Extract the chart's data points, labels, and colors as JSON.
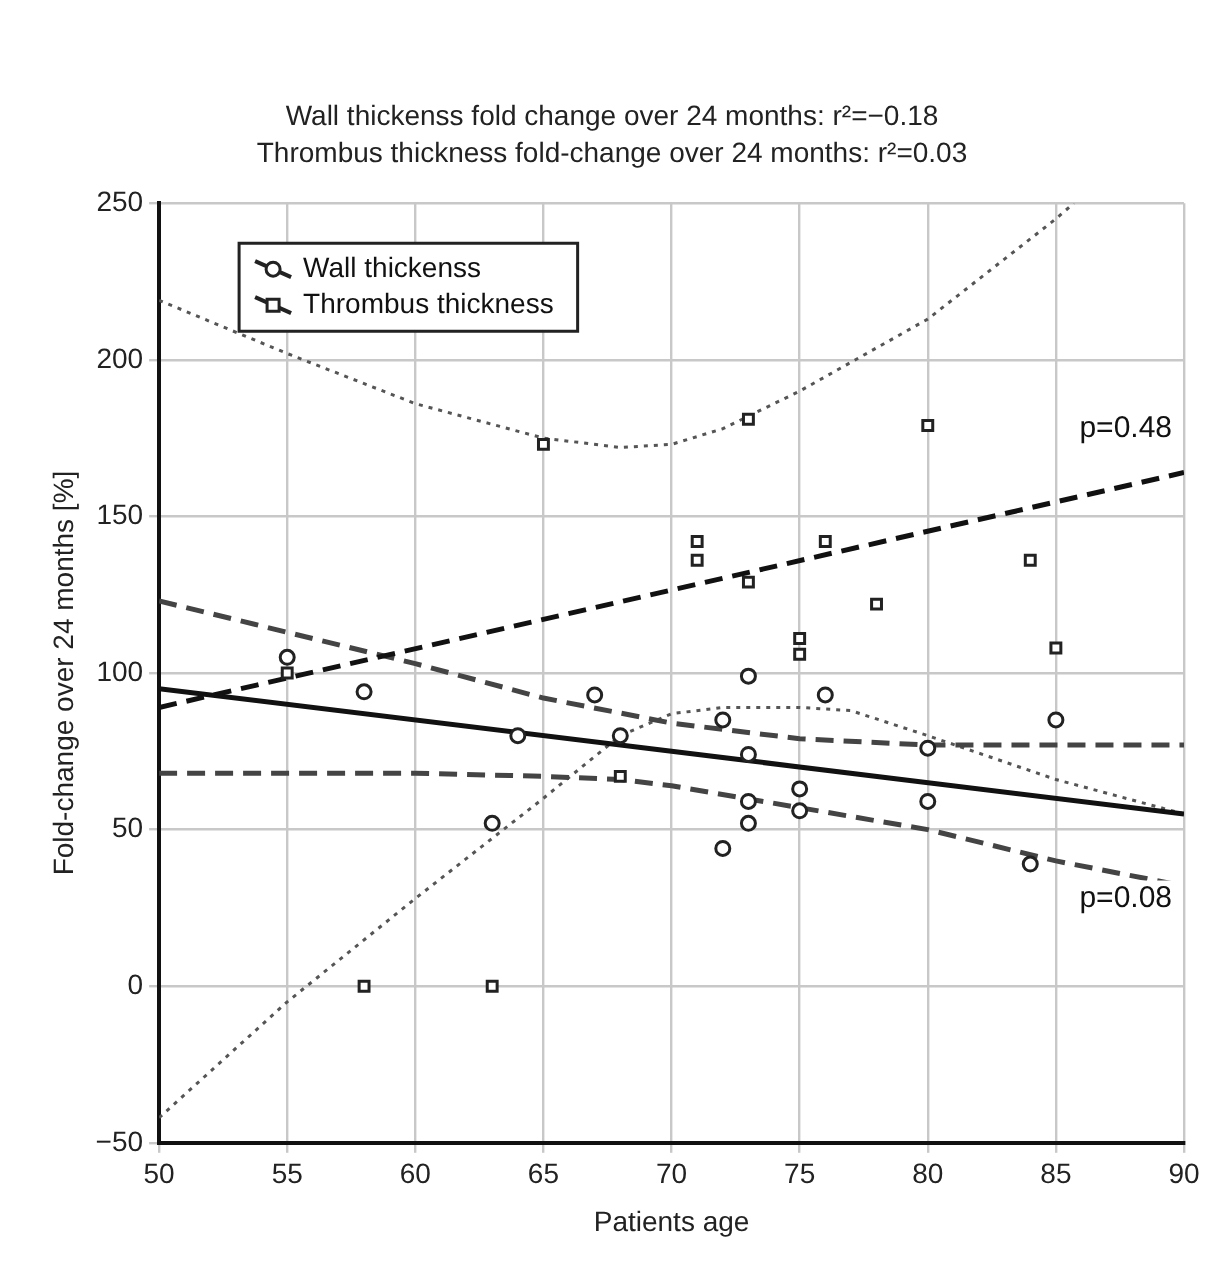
{
  "chart_data": {
    "type": "scatter",
    "title": "Wall thickenss fold change over 24 months: r²=−0.18",
    "subtitle": "Thrombus thickness fold-change over 24 months: r²=0.03",
    "xlabel": "Patients age",
    "ylabel": "Fold-change over 24 months [%]",
    "xlim": [
      50,
      90
    ],
    "xticks": [
      50,
      55,
      60,
      65,
      70,
      75,
      80,
      85,
      90
    ],
    "ylim": [
      -50,
      250
    ],
    "yticks": [
      {
        "value": -50,
        "label": "−50"
      },
      0,
      50,
      100,
      150,
      200,
      250
    ],
    "grid": true,
    "legend": "top left",
    "series": [
      {
        "name": "Wall thickenss",
        "marker": "circle",
        "color": "#222222",
        "x": [
          55,
          58,
          63,
          64,
          67,
          68,
          72,
          72,
          73,
          73,
          73,
          73,
          75,
          75,
          76,
          80,
          80,
          84,
          85
        ],
        "values": [
          105,
          94,
          52,
          80,
          93,
          80,
          44,
          85,
          99,
          74,
          59,
          52,
          63,
          56,
          93,
          76,
          59,
          39,
          85
        ]
      },
      {
        "name": "Thrombus thickness",
        "marker": "square",
        "color": "#222222",
        "x": [
          55,
          58,
          63,
          65,
          68,
          71,
          71,
          73,
          73,
          75,
          75,
          76,
          78,
          80,
          84,
          85
        ],
        "values": [
          100,
          0,
          0,
          173,
          67,
          142,
          136,
          181,
          129,
          111,
          106,
          142,
          122,
          179,
          136,
          108
        ]
      },
      {
        "type": "line",
        "line_style": "solid",
        "color": "#111111",
        "x": [
          50,
          90
        ],
        "values": [
          95,
          55
        ]
      },
      {
        "type": "line",
        "line_style": "dashed",
        "color": "#111111",
        "x": [
          50,
          90
        ],
        "values": [
          89,
          164
        ]
      },
      {
        "type": "line",
        "line_style": "dashed",
        "color": "#444444",
        "x": [
          50,
          55,
          60,
          65,
          70,
          75,
          80,
          90
        ],
        "values": [
          123,
          113,
          103,
          92,
          84,
          79,
          77,
          77
        ]
      },
      {
        "type": "line",
        "line_style": "dashed",
        "color": "#444444",
        "x": [
          50,
          60,
          65,
          68,
          70,
          75,
          80,
          85,
          90
        ],
        "values": [
          68,
          68,
          67,
          66,
          64,
          57,
          50,
          40,
          32
        ]
      },
      {
        "type": "line",
        "line_style": "dotted",
        "color": "#555555",
        "x": [
          50,
          55,
          60,
          65,
          68,
          70,
          72,
          75,
          80,
          85,
          85.7
        ],
        "values": [
          219,
          202,
          186,
          175,
          172,
          173,
          178,
          190,
          213,
          245,
          250
        ]
      },
      {
        "type": "line",
        "line_style": "dotted",
        "color": "#555555",
        "x": [
          50,
          55,
          60,
          65,
          68,
          70,
          72,
          75,
          77,
          80,
          85,
          90
        ],
        "values": [
          -42,
          -5,
          28,
          60,
          80,
          87,
          89,
          89,
          88,
          80,
          66,
          55
        ]
      }
    ],
    "annotations": [
      "p=0.48",
      "p=0.08"
    ]
  }
}
